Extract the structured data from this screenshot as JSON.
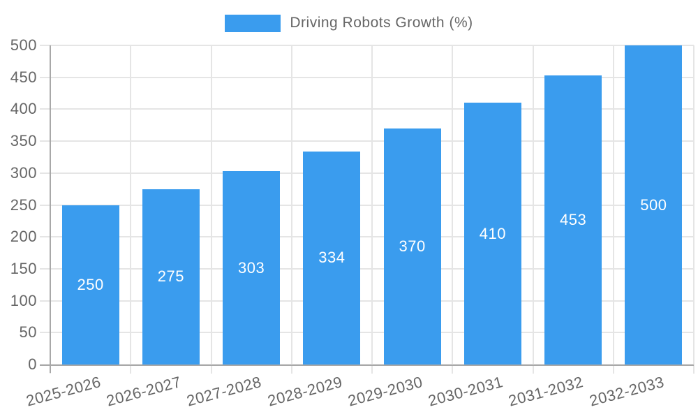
{
  "chart_data": {
    "type": "bar",
    "title": "",
    "legend": {
      "position": "top",
      "label": "Driving Robots Growth (%)"
    },
    "categories": [
      "2025-2026",
      "2026-2027",
      "2027-2028",
      "2028-2029",
      "2029-2030",
      "2030-2031",
      "2031-2032",
      "2032-2033"
    ],
    "series": [
      {
        "name": "Driving Robots Growth (%)",
        "values": [
          250,
          275,
          303,
          334,
          370,
          410,
          453,
          500
        ],
        "color": "#3A9CEE"
      }
    ],
    "value_labels": {
      "show": true,
      "position": "center",
      "color": "#FFFFFF"
    },
    "xlabel": "",
    "ylabel": "",
    "ylim": [
      0,
      500
    ],
    "yticks": [
      0,
      50,
      100,
      150,
      200,
      250,
      300,
      350,
      400,
      450,
      500
    ],
    "grid": true,
    "x_tick_rotation_deg": -15,
    "colors": {
      "grid": "#E5E5E5",
      "axis_line": "#A8A8A8",
      "tick_text": "#666666",
      "legend_text": "#666666",
      "background": "#FFFFFF"
    }
  }
}
